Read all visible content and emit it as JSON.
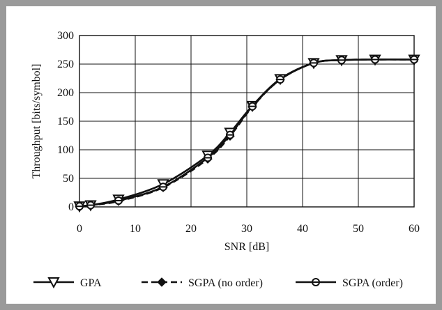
{
  "chart_data": {
    "type": "line",
    "title": "",
    "xlabel": "SNR [dB]",
    "ylabel": "Throughput [bits/symbol]",
    "xlim": [
      0,
      60
    ],
    "ylim": [
      0,
      300
    ],
    "xticks": [
      "0",
      "10",
      "20",
      "30",
      "40",
      "50",
      "60"
    ],
    "yticks": [
      "0",
      "50",
      "100",
      "150",
      "200",
      "250",
      "300"
    ],
    "grid": true,
    "legend_position": "bottom",
    "series": [
      {
        "name": "GPA",
        "marker": "triangle-down",
        "color": "#111111",
        "dash": "solid",
        "x": [
          0,
          2,
          7,
          15,
          23,
          27,
          31,
          36,
          42,
          47,
          53,
          60
        ],
        "y": [
          1,
          3,
          13,
          40,
          90,
          130,
          177,
          224,
          252,
          257,
          258,
          258
        ]
      },
      {
        "name": "SGPA (no order)",
        "marker": "diamond",
        "color": "#111111",
        "dash": "dashed",
        "x": [
          0,
          2,
          7,
          15,
          23,
          27,
          31,
          36,
          42,
          47,
          53,
          60
        ],
        "y": [
          1,
          3,
          10,
          34,
          84,
          124,
          175,
          223,
          252,
          257,
          258,
          258
        ]
      },
      {
        "name": "SGPA (order)",
        "marker": "circle",
        "color": "#111111",
        "dash": "solid",
        "x": [
          0,
          2,
          7,
          15,
          23,
          27,
          31,
          36,
          42,
          47,
          53,
          60
        ],
        "y": [
          1,
          3,
          11,
          35,
          86,
          126,
          176,
          223,
          252,
          257,
          258,
          258
        ]
      }
    ]
  }
}
